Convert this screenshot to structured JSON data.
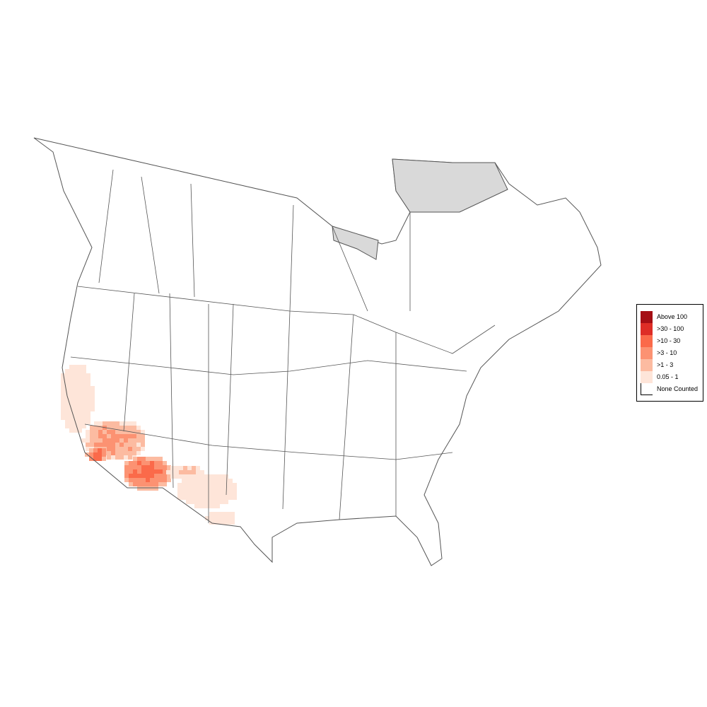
{
  "legend": {
    "items": [
      {
        "label": "Above 100",
        "color": "#a50f15"
      },
      {
        "label": ">30 - 100",
        "color": "#de2d26"
      },
      {
        "label": ">10 - 30",
        "color": "#fb6a4a"
      },
      {
        "label": ">3 - 10",
        "color": "#fc9272"
      },
      {
        "label": ">1 - 3",
        "color": "#fcbba1"
      },
      {
        "label": "0.05 - 1",
        "color": "#fee5d9"
      },
      {
        "label": "None Counted",
        "color": "#ffffff"
      }
    ]
  },
  "map": {
    "no_data_color": "#d9d9d9",
    "boundary_color": "#555555"
  }
}
